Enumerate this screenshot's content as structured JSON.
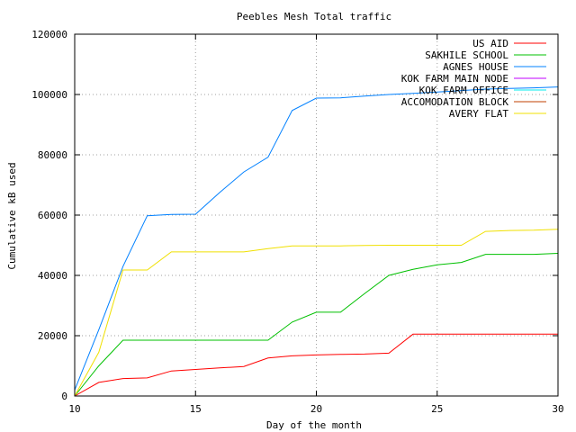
{
  "chart_data": {
    "type": "line",
    "title": "Peebles Mesh Total traffic",
    "xlabel": "Day of the month",
    "ylabel": "Cumulative kB used",
    "xlim": [
      10,
      30
    ],
    "ylim": [
      0,
      120000
    ],
    "xticks": [
      10,
      15,
      20,
      25,
      30
    ],
    "yticks": [
      0,
      20000,
      40000,
      60000,
      80000,
      100000,
      120000
    ],
    "grid": true,
    "legend_position": "top-right",
    "series": [
      {
        "name": "US AID",
        "color": "#ff0000",
        "x": [
          10,
          11,
          12,
          13,
          14,
          15,
          16,
          17,
          18,
          19,
          20,
          21,
          22,
          23,
          24,
          25,
          26,
          27,
          28,
          29,
          30
        ],
        "y": [
          0,
          4500,
          5800,
          6000,
          8300,
          8800,
          9300,
          9800,
          12600,
          13300,
          13600,
          13800,
          13900,
          14200,
          20500,
          20500,
          20500,
          20500,
          20500,
          20500,
          20500
        ]
      },
      {
        "name": "SAKHILE SCHOOL",
        "color": "#00c000",
        "x": [
          10,
          11,
          12,
          13,
          14,
          15,
          16,
          17,
          18,
          19,
          20,
          21,
          22,
          23,
          24,
          25,
          26,
          27,
          28,
          29,
          30
        ],
        "y": [
          0,
          10000,
          18500,
          18500,
          18500,
          18500,
          18500,
          18500,
          18500,
          24500,
          27800,
          27800,
          34000,
          40000,
          42000,
          43500,
          44300,
          47000,
          47000,
          47000,
          47300
        ]
      },
      {
        "name": "AGNES HOUSE",
        "color": "#0080ff",
        "x": [
          10,
          11,
          12,
          13,
          14,
          15,
          16,
          17,
          18,
          19,
          20,
          21,
          22,
          23,
          24,
          25,
          26,
          27,
          28,
          29,
          30
        ],
        "y": [
          2000,
          22000,
          43000,
          59800,
          60200,
          60300,
          67500,
          74300,
          79200,
          94700,
          98800,
          98900,
          99500,
          100000,
          100400,
          100800,
          101300,
          101800,
          102000,
          102200,
          102500
        ]
      },
      {
        "name": "KOK FARM MAIN NODE",
        "color": "#c000ff",
        "x": [],
        "y": []
      },
      {
        "name": "KOK FARM OFFICE",
        "color": "#00eeee",
        "x": [],
        "y": []
      },
      {
        "name": "ACCOMODATION BLOCK",
        "color": "#c04000",
        "x": [],
        "y": []
      },
      {
        "name": "AVERY FLAT",
        "color": "#f0e000",
        "x": [
          10,
          11,
          12,
          13,
          14,
          15,
          16,
          17,
          18,
          19,
          20,
          21,
          22,
          23,
          24,
          25,
          26,
          27,
          28,
          29,
          30
        ],
        "y": [
          0,
          14500,
          41800,
          41800,
          47800,
          47800,
          47800,
          47800,
          48900,
          49800,
          49800,
          49800,
          49900,
          50000,
          50000,
          50000,
          50000,
          54600,
          54900,
          55000,
          55300
        ]
      }
    ]
  }
}
